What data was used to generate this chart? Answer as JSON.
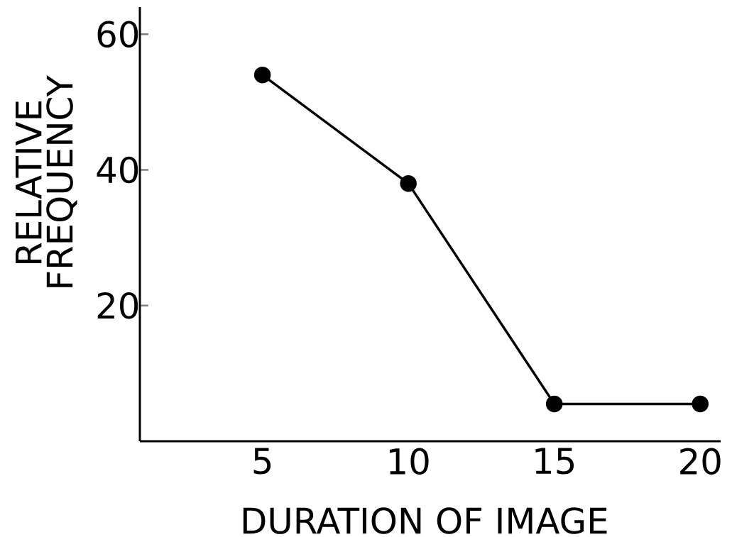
{
  "chart_data": {
    "type": "line",
    "xlabel": "DURATION OF IMAGE",
    "ylabel": "RELATIVE FREQUENCY",
    "x": [
      5,
      10,
      15,
      20
    ],
    "values": [
      54,
      38,
      5.5,
      5.5
    ],
    "color": "#000000",
    "marker": "circle",
    "line_style": "solid",
    "xlim": [
      0.8,
      20.7
    ],
    "ylim": [
      0,
      64
    ],
    "xticks": [
      5,
      10,
      15,
      20
    ],
    "yticks": [
      20,
      40,
      60
    ]
  }
}
